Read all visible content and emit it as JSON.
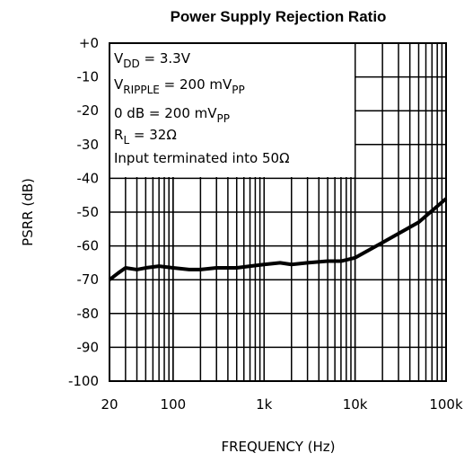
{
  "chart_data": {
    "type": "line",
    "title": "Power Supply Rejection Ratio",
    "xlabel": "FREQUENCY (Hz)",
    "ylabel": "PSRR (dB)",
    "xscale": "log",
    "grid": true,
    "color": "#000000",
    "x": [
      20,
      25,
      30,
      40,
      50,
      70,
      100,
      150,
      200,
      300,
      500,
      700,
      1000,
      1500,
      2000,
      3000,
      5000,
      7000,
      10000,
      20000,
      50000,
      100000
    ],
    "series": [
      {
        "color": "#000000",
        "values": [
          -70,
          -68,
          -66.5,
          -67,
          -66.5,
          -66,
          -66.5,
          -67,
          -67,
          -66.5,
          -66.5,
          -66,
          -65.5,
          -65,
          -65.5,
          -65,
          -64.5,
          -64.5,
          -63.5,
          -59,
          -53,
          -46
        ]
      }
    ],
    "xlim": [
      20,
      100000
    ],
    "xticks": [
      20,
      100,
      {
        "value": 1000,
        "label": "1k"
      },
      {
        "value": 10000,
        "label": "10k"
      },
      {
        "value": 100000,
        "label": "100k"
      }
    ],
    "ylim": [
      -100,
      0
    ],
    "yticks": [
      {
        "value": 0,
        "label": "+0"
      },
      -10,
      -20,
      -30,
      -40,
      -50,
      -60,
      -70,
      -80,
      -90,
      -100
    ],
    "annotations": [
      [
        {
          "t": "V"
        },
        {
          "sub": "DD"
        },
        {
          "t": " = 3.3V"
        }
      ],
      [
        {
          "t": "V"
        },
        {
          "sub": "RIPPLE"
        },
        {
          "t": " = 200 mV"
        },
        {
          "sub": "PP"
        }
      ],
      [
        {
          "t": "0 dB = 200 mV"
        },
        {
          "sub": "PP"
        }
      ],
      [
        {
          "t": "R"
        },
        {
          "sub": "L"
        },
        {
          "t": " = 32Ω"
        }
      ],
      [
        {
          "t": "Input terminated into 50Ω"
        }
      ]
    ]
  }
}
